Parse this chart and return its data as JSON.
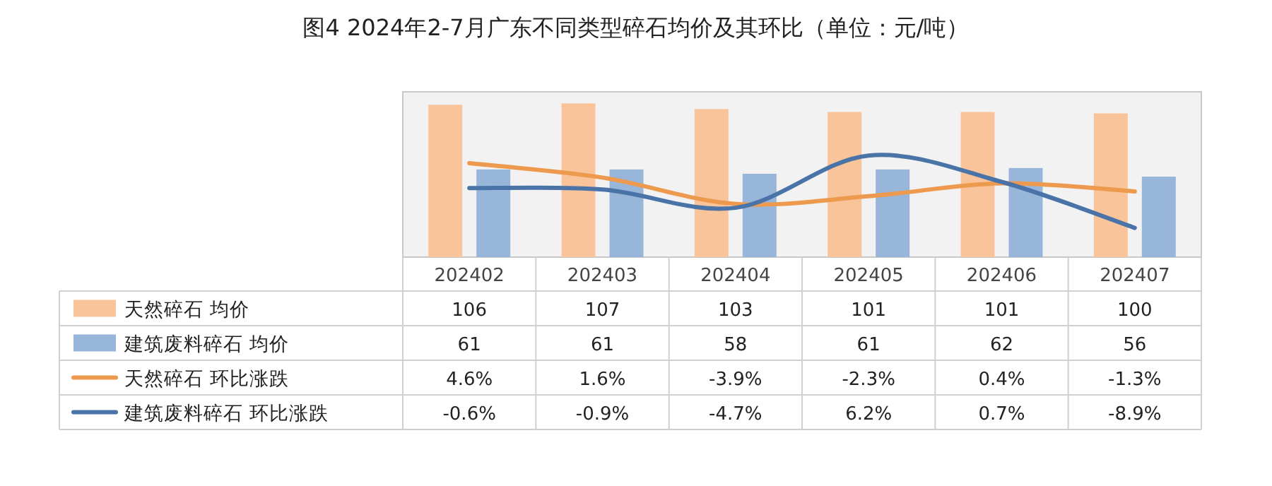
{
  "chart_data": {
    "type": "bar",
    "title": "图4 2024年2-7月广东不同类型碎石均价及其环比（单位：元/吨）",
    "categories": [
      "202402",
      "202403",
      "202404",
      "202405",
      "202406",
      "202407"
    ],
    "ylim": [
      0,
      115
    ],
    "y2lim": [
      -15,
      19.5
    ],
    "legend": "bottom",
    "grid": false,
    "series": [
      {
        "name": "天然碎石 均价",
        "color": "#f9c49a",
        "values": [
          106,
          107,
          103,
          101,
          101,
          100
        ],
        "value_labels": [
          "106",
          "107",
          "103",
          "101",
          "101",
          "100"
        ]
      },
      {
        "name": "建筑废料碎石 均价",
        "color": "#98b6da",
        "values": [
          61,
          61,
          58,
          61,
          62,
          56
        ],
        "value_labels": [
          "61",
          "61",
          "58",
          "61",
          "62",
          "56"
        ]
      },
      {
        "name": "天然碎石 环比涨跌",
        "type": "line",
        "axis": "y2",
        "color": "#ee9a4e",
        "values": [
          4.6,
          1.6,
          -3.9,
          -2.3,
          0.4,
          -1.3
        ],
        "value_labels": [
          "4.6%",
          "1.6%",
          "-3.9%",
          "-2.3%",
          "0.4%",
          "-1.3%"
        ]
      },
      {
        "name": "建筑废料碎石 环比涨跌",
        "type": "line",
        "axis": "y2",
        "color": "#4a74a8",
        "values": [
          -0.6,
          -0.9,
          -4.7,
          6.2,
          0.7,
          -8.9
        ],
        "value_labels": [
          "-0.6%",
          "-0.9%",
          "-4.7%",
          "6.2%",
          "0.7%",
          "-8.9%"
        ]
      }
    ]
  }
}
